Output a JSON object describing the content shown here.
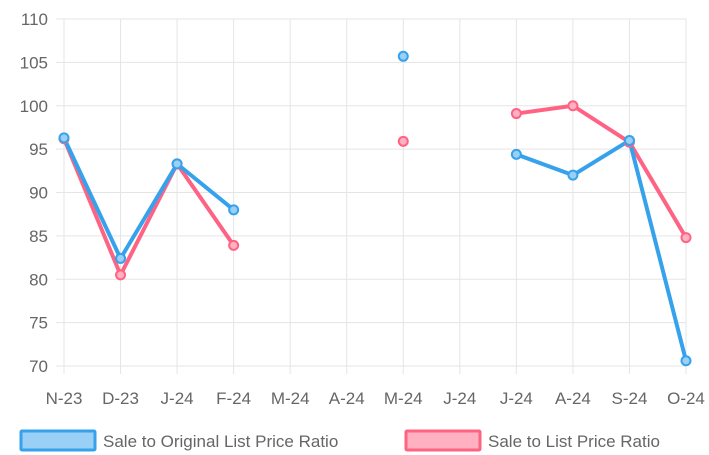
{
  "chart_data": {
    "type": "line",
    "title": "",
    "xlabel": "",
    "ylabel": "",
    "categories": [
      "N-23",
      "D-23",
      "J-24",
      "F-24",
      "M-24",
      "A-24",
      "M-24",
      "J-24",
      "J-24",
      "A-24",
      "S-24",
      "O-24"
    ],
    "ylim": [
      70,
      110
    ],
    "yticks": [
      70,
      75,
      80,
      85,
      90,
      95,
      100,
      105,
      110
    ],
    "grid": true,
    "legend_position": "bottom",
    "series": [
      {
        "name": "Sale to Original List Price Ratio",
        "color": "#36a2eb",
        "fill": "#9ad0f5",
        "values": [
          96.3,
          82.4,
          93.3,
          88.0,
          null,
          null,
          105.7,
          null,
          94.4,
          92.0,
          96.0,
          70.6
        ]
      },
      {
        "name": "Sale to List Price Ratio",
        "color": "#ff6384",
        "fill": "#ffb1c1",
        "values": [
          96.2,
          80.5,
          93.3,
          83.9,
          null,
          null,
          95.9,
          null,
          99.1,
          100.0,
          95.8,
          84.8
        ]
      }
    ]
  }
}
